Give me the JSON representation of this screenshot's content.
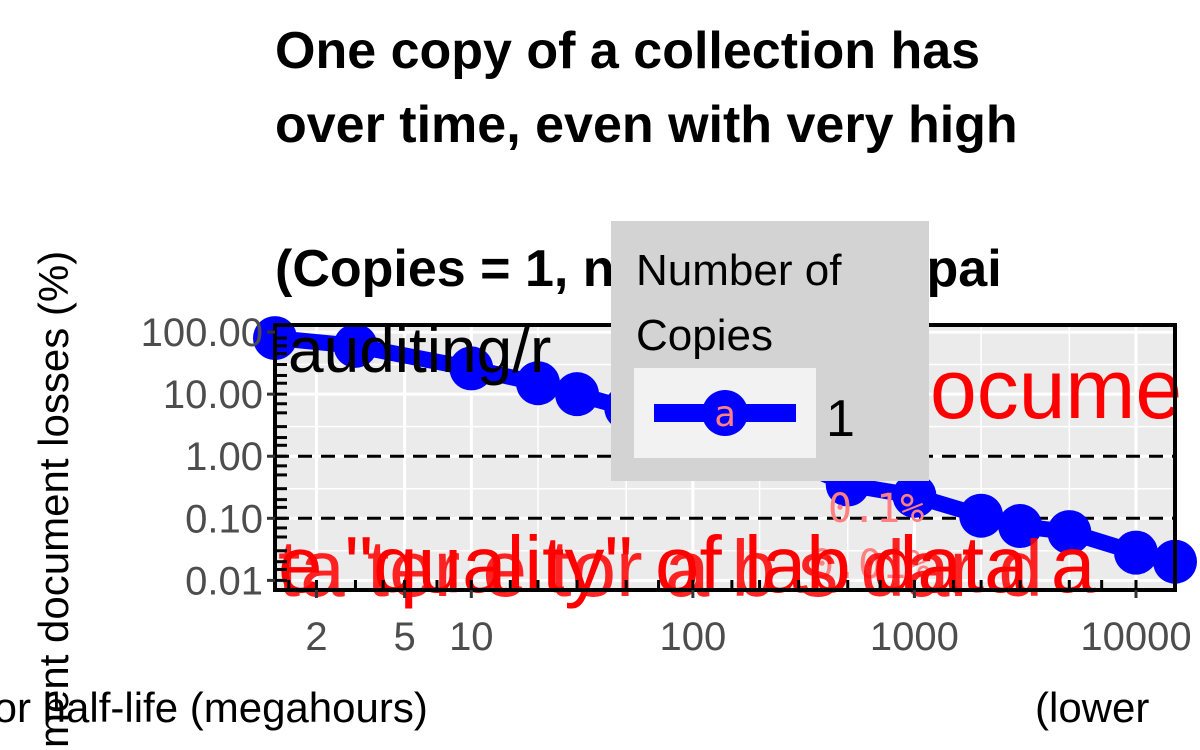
{
  "chart_data": {
    "type": "line",
    "title_lines": [
      "One copy of a collection has",
      "over time, even with very high",
      "",
      "(Copies = 1, no auditing/repai",
      "auditing/r"
    ],
    "xlabel": "tor half-life (megahours)",
    "xlabel_right": "(lower",
    "ylabel": "ment document losses (%)",
    "x_scale": "log",
    "y_scale": "log",
    "xlim": [
      1.3,
      15000
    ],
    "ylim": [
      0.007,
      130
    ],
    "x_ticks": [
      2,
      5,
      10,
      100,
      1000,
      10000
    ],
    "x_tick_labels": [
      "2",
      "5",
      "10",
      "100",
      "1000",
      "10000"
    ],
    "y_ticks": [
      0.01,
      0.1,
      1,
      10,
      100
    ],
    "y_tick_labels": [
      "0.01",
      "0.10",
      "1.00",
      "10.00",
      "100.00"
    ],
    "reference_lines_y": [
      0.1,
      1
    ],
    "grid": true,
    "legend": {
      "title_lines": [
        "Number of",
        "Copies"
      ],
      "placement": "top-center",
      "key_glyph": "a"
    },
    "series": [
      {
        "name": "1",
        "color": "#0000ff",
        "x": [
          1.3,
          3,
          10,
          20,
          30,
          50,
          100,
          200,
          500,
          1000,
          2000,
          3000,
          5000,
          10000,
          15000
        ],
        "y": [
          80,
          60,
          26,
          15,
          10,
          6,
          3,
          1.5,
          0.35,
          0.23,
          0.11,
          0.075,
          0.06,
          0.028,
          0.02
        ]
      }
    ],
    "annotations": {
      "top_right": "ocume",
      "bottom": "e \"quality\" of lab data a",
      "bottom_overlap": "ta ter e tor a b s dar d",
      "mono_upper": "0.1%",
      "mono_lower": "0.01%"
    }
  }
}
